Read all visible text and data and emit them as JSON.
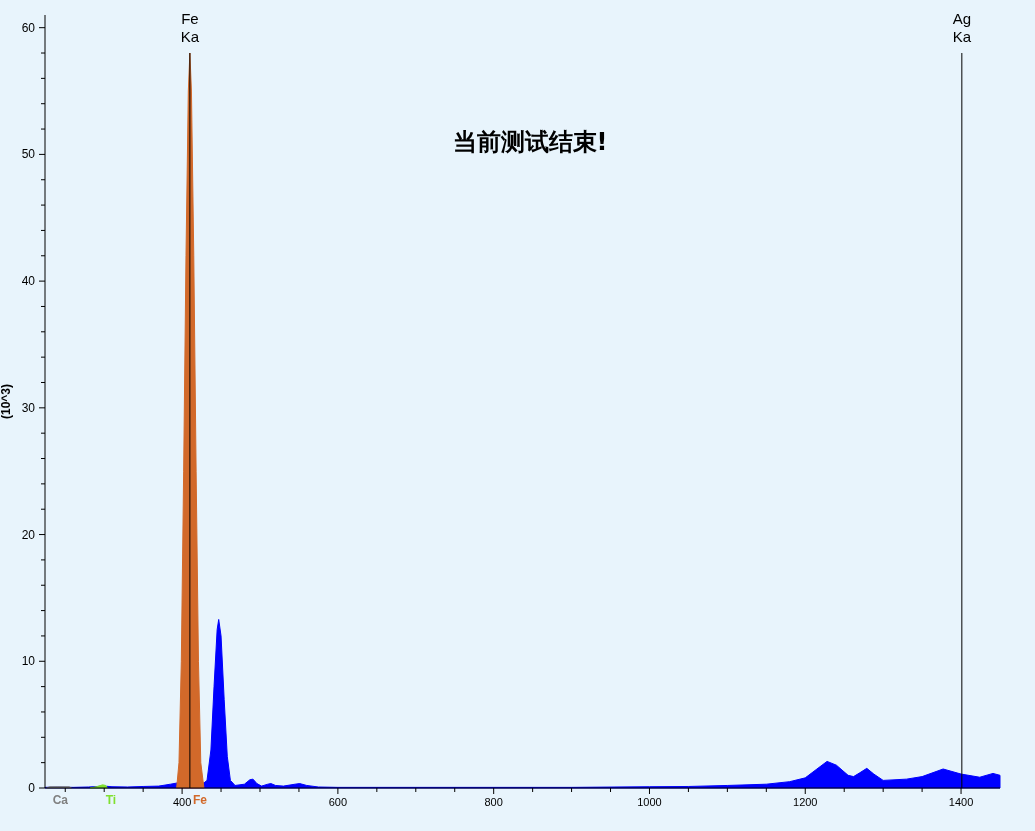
{
  "chart_data": {
    "type": "area",
    "title": "当前测试结束!",
    "ylabel": "(10^3)",
    "xlim": [
      224,
      1450
    ],
    "ylim": [
      0,
      61
    ],
    "xticks": [
      {
        "value": 250,
        "label": null
      },
      {
        "value": 300,
        "label": null
      },
      {
        "value": 350,
        "label": null
      },
      400,
      {
        "value": 450,
        "label": null
      },
      {
        "value": 500,
        "label": null
      },
      {
        "value": 550,
        "label": null
      },
      600,
      {
        "value": 650,
        "label": null
      },
      {
        "value": 700,
        "label": null
      },
      {
        "value": 750,
        "label": null
      },
      800,
      {
        "value": 850,
        "label": null
      },
      {
        "value": 900,
        "label": null
      },
      {
        "value": 950,
        "label": null
      },
      1000,
      {
        "value": 1050,
        "label": null
      },
      {
        "value": 1100,
        "label": null
      },
      {
        "value": 1150,
        "label": null
      },
      1200,
      {
        "value": 1250,
        "label": null
      },
      {
        "value": 1300,
        "label": null
      },
      {
        "value": 1350,
        "label": null
      },
      1400
    ],
    "yticks": [
      0,
      {
        "value": 2,
        "label": null
      },
      {
        "value": 4,
        "label": null
      },
      {
        "value": 6,
        "label": null
      },
      {
        "value": 8,
        "label": null
      },
      10,
      {
        "value": 12,
        "label": null
      },
      {
        "value": 14,
        "label": null
      },
      {
        "value": 16,
        "label": null
      },
      {
        "value": 18,
        "label": null
      },
      20,
      {
        "value": 22,
        "label": null
      },
      {
        "value": 24,
        "label": null
      },
      {
        "value": 26,
        "label": null
      },
      {
        "value": 28,
        "label": null
      },
      30,
      {
        "value": 32,
        "label": null
      },
      {
        "value": 34,
        "label": null
      },
      {
        "value": 36,
        "label": null
      },
      {
        "value": 38,
        "label": null
      },
      40,
      {
        "value": 42,
        "label": null
      },
      {
        "value": 44,
        "label": null
      },
      {
        "value": 46,
        "label": null
      },
      {
        "value": 48,
        "label": null
      },
      50,
      {
        "value": 52,
        "label": null
      },
      {
        "value": 54,
        "label": null
      },
      {
        "value": 56,
        "label": null
      },
      {
        "value": 58,
        "label": null
      },
      60
    ],
    "grid": false,
    "series": [
      {
        "color": "#0000ff",
        "x": [
          224,
          240,
          260,
          280,
          300,
          310,
          330,
          350,
          370,
          385,
          394,
          428,
          432,
          437,
          441,
          445,
          447,
          450,
          454,
          458,
          462,
          468,
          480,
          487,
          491,
          496,
          502,
          510,
          514,
          520,
          530,
          545,
          551,
          560,
          575,
          600,
          650,
          700,
          800,
          900,
          1000,
          1050,
          1100,
          1150,
          1180,
          1200,
          1215,
          1228,
          1240,
          1255,
          1262,
          1270,
          1279,
          1288,
          1300,
          1330,
          1350,
          1377,
          1400,
          1424,
          1441,
          1450
        ],
        "values": [
          0.05,
          0.08,
          0.05,
          0.08,
          0.15,
          0.1,
          0.08,
          0.12,
          0.15,
          0.3,
          0.4,
          0.4,
          0.6,
          3,
          8,
          12.5,
          13.3,
          12,
          7,
          2.5,
          0.6,
          0.2,
          0.3,
          0.65,
          0.7,
          0.35,
          0.15,
          0.3,
          0.35,
          0.2,
          0.15,
          0.3,
          0.35,
          0.2,
          0.08,
          0.05,
          0.05,
          0.05,
          0.05,
          0.05,
          0.1,
          0.12,
          0.2,
          0.3,
          0.5,
          0.8,
          1.5,
          2.1,
          1.8,
          1.0,
          0.9,
          1.2,
          1.55,
          1.1,
          0.6,
          0.7,
          0.9,
          1.5,
          1.1,
          0.85,
          1.15,
          1.0
        ]
      },
      {
        "name": "Ca",
        "color": "#808080",
        "x": [
          226,
          230,
          255,
          258
        ],
        "values": [
          0,
          0.1,
          0.1,
          0
        ]
      },
      {
        "name": "Ti",
        "color": "#80e030",
        "x": [
          282,
          290,
          298,
          302,
          304
        ],
        "values": [
          0,
          0.1,
          0.25,
          0.2,
          0
        ]
      },
      {
        "name": "Fe",
        "color": "#d2692a",
        "x": [
          393,
          396,
          399,
          402,
          405,
          408,
          410,
          412,
          415,
          418,
          421,
          424,
          428
        ],
        "values": [
          0,
          2,
          10,
          25,
          42,
          55,
          58,
          55,
          42,
          25,
          10,
          2,
          0
        ]
      }
    ],
    "ref_lines": [
      {
        "axis": "x",
        "value": 410,
        "label": "Fe\nKa",
        "color": "#000000"
      },
      {
        "axis": "x",
        "value": 1401,
        "label": "Ag\nKa",
        "color": "#000000"
      }
    ]
  }
}
